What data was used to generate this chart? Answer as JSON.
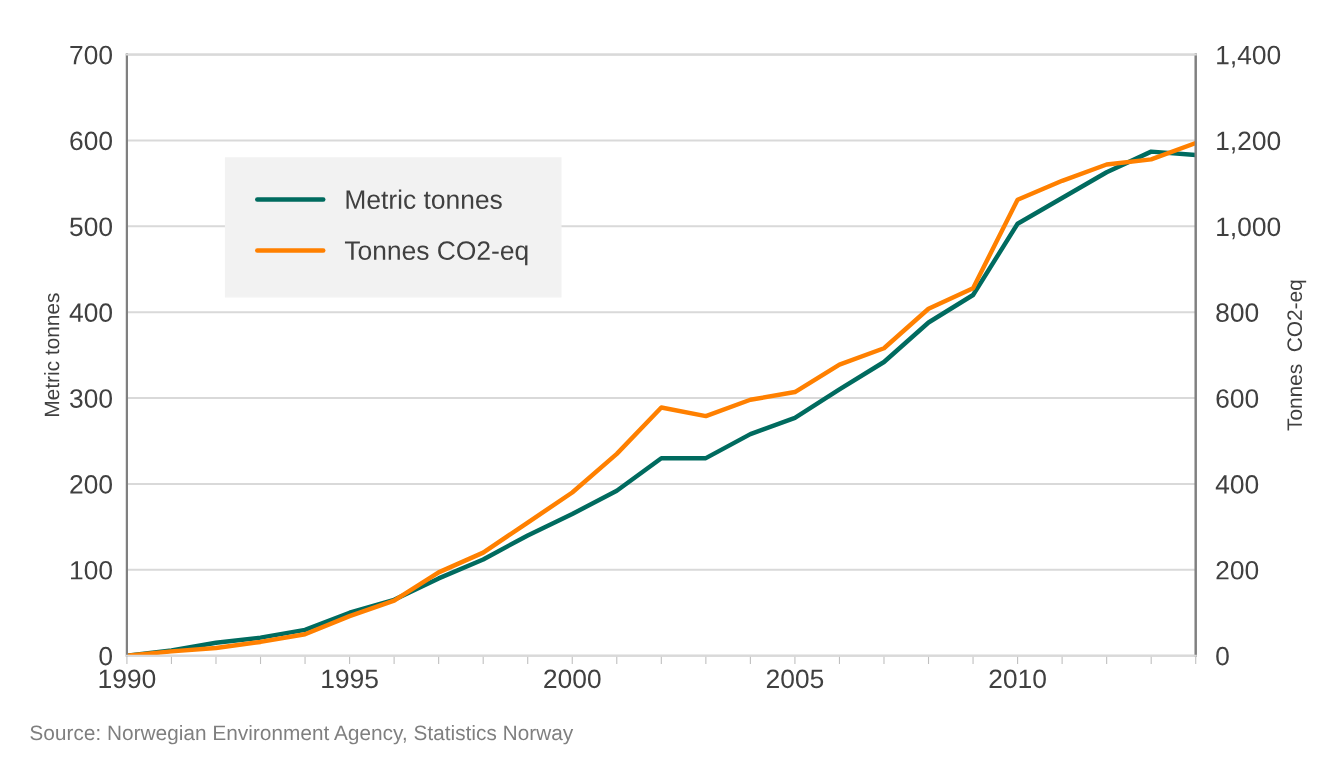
{
  "chart_data": {
    "type": "line",
    "x": [
      1990,
      1991,
      1992,
      1993,
      1994,
      1995,
      1996,
      1997,
      1998,
      1999,
      2000,
      2001,
      2002,
      2003,
      2004,
      2005,
      2006,
      2007,
      2008,
      2009,
      2010,
      2011,
      2012,
      2013,
      2014
    ],
    "series": [
      {
        "name": "Metric tonnes",
        "color": "#006b5f",
        "values": [
          0,
          6,
          15,
          21,
          30,
          50,
          65,
          90,
          112,
          140,
          165,
          192,
          230,
          230,
          258,
          277,
          310,
          342,
          388,
          420,
          503,
          533,
          563,
          587,
          583
        ]
      },
      {
        "name": "Tonnes CO2-eq",
        "color": "#ff8000",
        "axis": "y2",
        "values": [
          0,
          10,
          18,
          32,
          50,
          92,
          128,
          194,
          240,
          310,
          380,
          470,
          578,
          558,
          596,
          614,
          678,
          716,
          808,
          856,
          1062,
          1106,
          1144,
          1156,
          1194
        ]
      }
    ],
    "ylabel": "Metric tonnes",
    "y2label": "Tonnes  CO2-eq",
    "xlim": [
      1990,
      2014
    ],
    "xticks": [
      1990,
      {
        "value": 1991,
        "label": null
      },
      {
        "value": 1992,
        "label": null
      },
      {
        "value": 1993,
        "label": null
      },
      {
        "value": 1994,
        "label": null
      },
      1995,
      {
        "value": 1996,
        "label": null
      },
      {
        "value": 1997,
        "label": null
      },
      {
        "value": 1998,
        "label": null
      },
      {
        "value": 1999,
        "label": null
      },
      2000,
      {
        "value": 2001,
        "label": null
      },
      {
        "value": 2002,
        "label": null
      },
      {
        "value": 2003,
        "label": null
      },
      {
        "value": 2004,
        "label": null
      },
      2005,
      {
        "value": 2006,
        "label": null
      },
      {
        "value": 2007,
        "label": null
      },
      {
        "value": 2008,
        "label": null
      },
      {
        "value": 2009,
        "label": null
      },
      2010,
      {
        "value": 2011,
        "label": null
      },
      {
        "value": 2012,
        "label": null
      },
      {
        "value": 2013,
        "label": null
      },
      {
        "value": 2014,
        "label": null
      }
    ],
    "ylim": [
      0,
      700
    ],
    "yticks": [
      0,
      100,
      200,
      300,
      400,
      500,
      600,
      700
    ],
    "y2lim": [
      0,
      1400
    ],
    "y2ticks": [
      0,
      200,
      400,
      {
        "value": 600,
        "label": "600"
      },
      800,
      {
        "value": 1000,
        "label": "1,000"
      },
      {
        "value": 1200,
        "label": "1,200"
      },
      {
        "value": 1400,
        "label": "1,400"
      }
    ],
    "grid": "y",
    "legend": "top left",
    "marker": "none",
    "line_style": "solid",
    "annotations": [
      "Source: Norwegian Environment Agency, Statistics Norway"
    ]
  }
}
